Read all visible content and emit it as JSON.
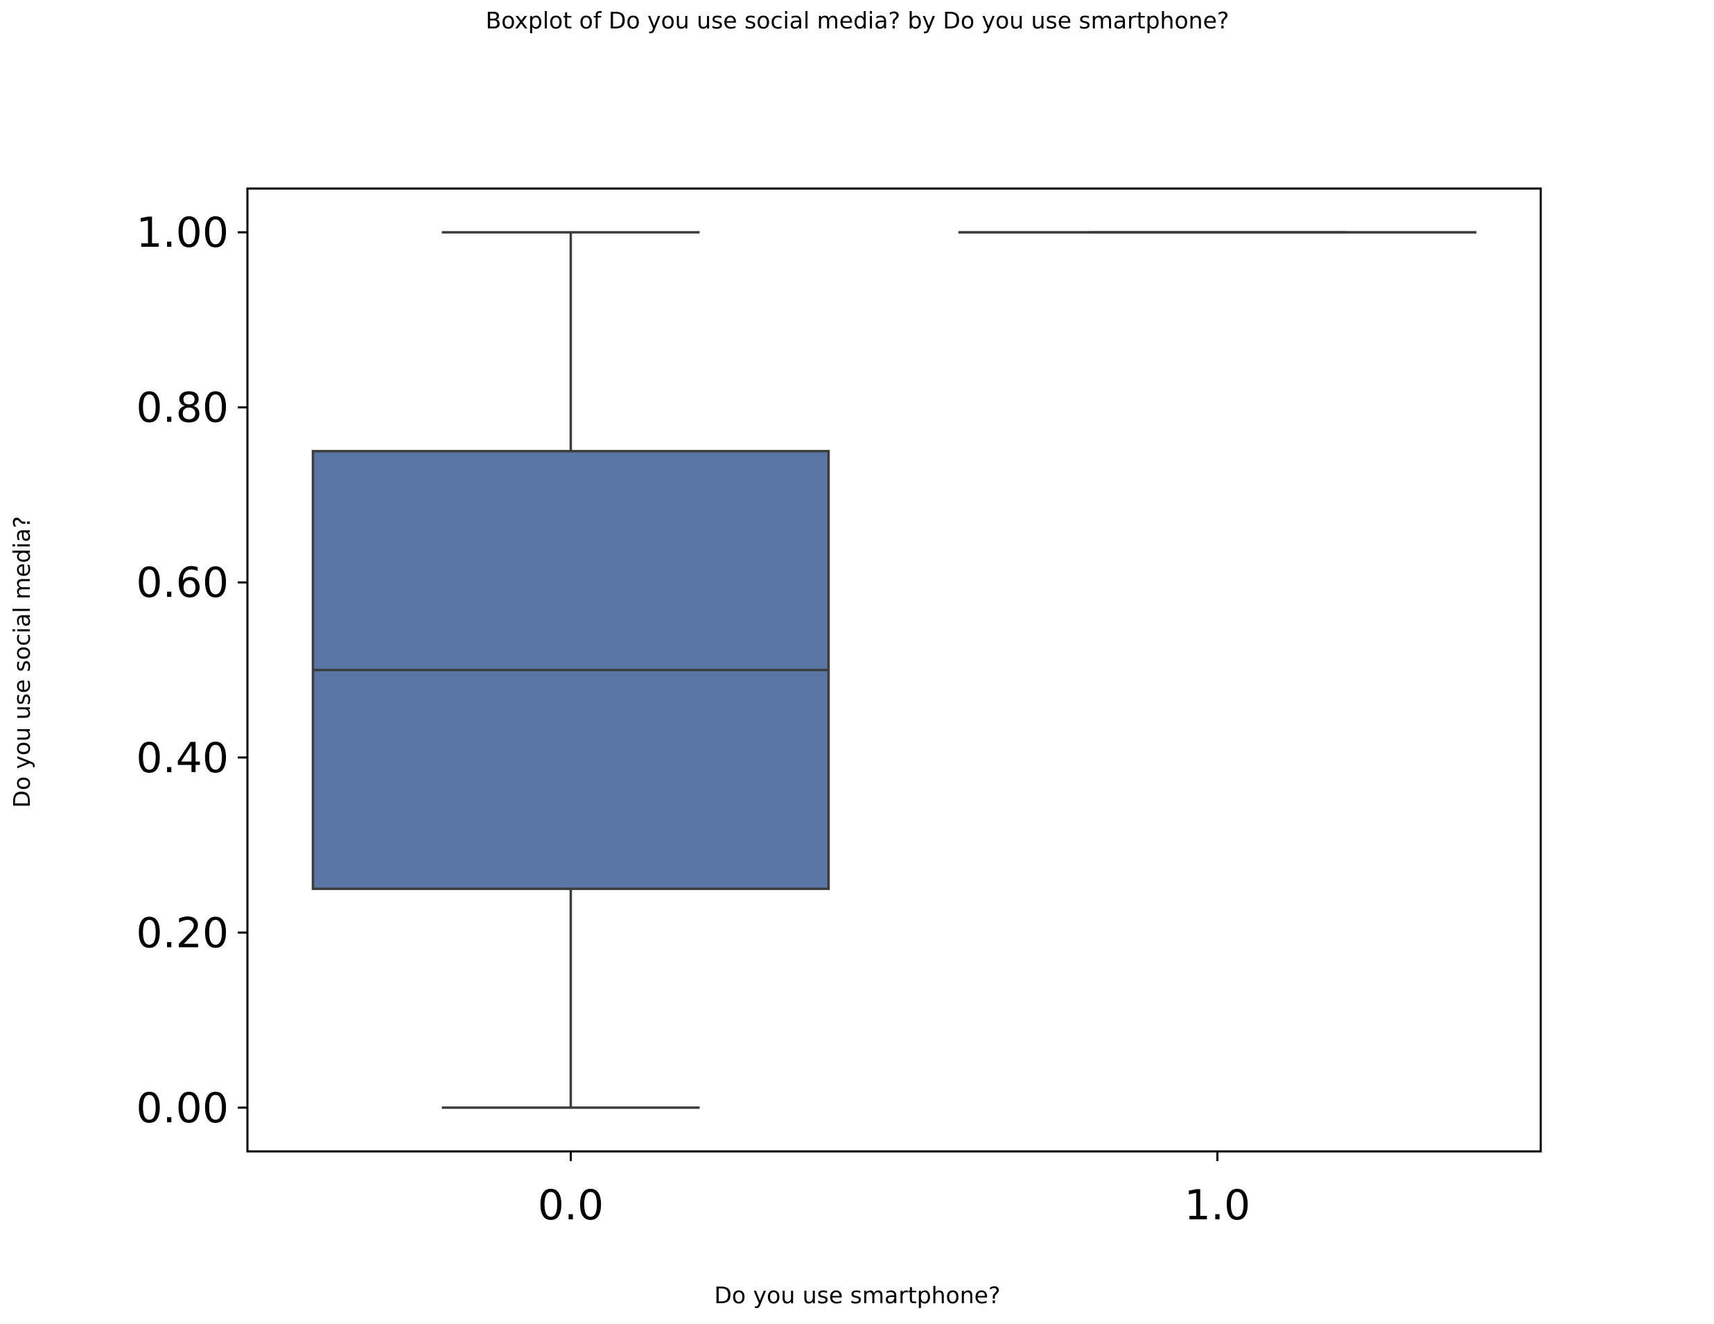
{
  "chart_data": {
    "type": "box",
    "title": "Boxplot of Do you use social media? by Do you use smartphone?",
    "xlabel": "Do you use smartphone?",
    "ylabel": "Do you use social media?",
    "ylim": [
      -0.05,
      1.05
    ],
    "yticks": [
      0.0,
      0.2,
      0.4,
      0.6,
      0.8,
      1.0
    ],
    "ytick_labels": [
      "0.00",
      "0.20",
      "0.40",
      "0.60",
      "0.80",
      "1.00"
    ],
    "categories": [
      "0.0",
      "1.0"
    ],
    "boxes": [
      {
        "category": "0.0",
        "whisker_low": 0.0,
        "q1": 0.25,
        "median": 0.5,
        "q3": 0.75,
        "whisker_high": 1.0
      },
      {
        "category": "1.0",
        "whisker_low": 1.0,
        "q1": 1.0,
        "median": 1.0,
        "q3": 1.0,
        "whisker_high": 1.0
      }
    ],
    "grid": false,
    "legend": "none",
    "colors": {
      "box_fill": "#5975a4",
      "box_edge": "#3d3d3d",
      "axes": "#000000"
    }
  }
}
